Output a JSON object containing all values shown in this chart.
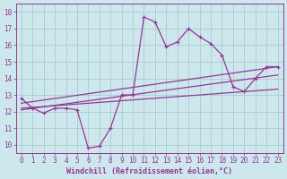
{
  "xlabel": "Windchill (Refroidissement éolien,°C)",
  "bg_color": "#cce8ec",
  "grid_color": "#aacccc",
  "line_color": "#993399",
  "spine_color": "#993399",
  "xlim": [
    -0.5,
    23.5
  ],
  "ylim": [
    9.5,
    18.5
  ],
  "xticks": [
    0,
    1,
    2,
    3,
    4,
    5,
    6,
    7,
    8,
    9,
    10,
    11,
    12,
    13,
    14,
    15,
    16,
    17,
    18,
    19,
    20,
    21,
    22,
    23
  ],
  "yticks": [
    10,
    11,
    12,
    13,
    14,
    15,
    16,
    17,
    18
  ],
  "curve1_x": [
    0,
    1,
    2,
    3,
    4,
    5,
    6,
    7,
    8,
    9,
    10,
    11,
    12,
    13,
    14,
    15,
    16,
    17,
    18,
    19,
    20,
    21,
    22,
    23
  ],
  "curve1_y": [
    12.8,
    12.2,
    11.9,
    12.2,
    12.2,
    12.1,
    9.8,
    9.9,
    11.0,
    13.0,
    13.0,
    17.7,
    17.4,
    15.9,
    16.2,
    17.0,
    16.5,
    16.1,
    15.4,
    13.5,
    13.2,
    14.0,
    14.7,
    14.7
  ],
  "curve2_x": [
    0,
    23
  ],
  "curve2_y": [
    12.5,
    14.7
  ],
  "curve3_x": [
    0,
    23
  ],
  "curve3_y": [
    12.2,
    13.35
  ],
  "curve4_x": [
    0,
    23
  ],
  "curve4_y": [
    12.1,
    14.2
  ]
}
